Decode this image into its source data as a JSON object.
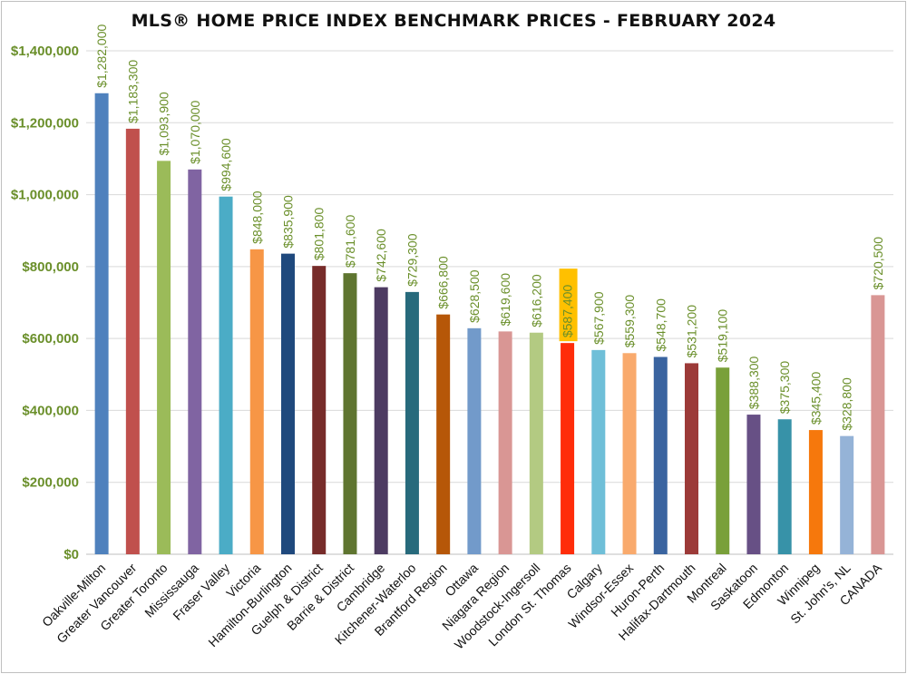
{
  "chart_data": {
    "type": "bar",
    "title": "MLS® HOME PRICE INDEX BENCHMARK PRICES - FEBRUARY 2024",
    "xlabel": "",
    "ylabel": "",
    "ylim": [
      0,
      1400000
    ],
    "yticks": [
      0,
      200000,
      400000,
      600000,
      800000,
      1000000,
      1200000,
      1400000
    ],
    "ytick_labels": [
      "$0",
      "$200,000",
      "$400,000",
      "$600,000",
      "$800,000",
      "$1,000,000",
      "$1,200,000",
      "$1,400,000"
    ],
    "grid": true,
    "legend": "none",
    "categories": [
      "Oakville-Milton",
      "Greater Vancouver",
      "Greater Toronto",
      "Mississauga",
      "Fraser Valley",
      "Victoria",
      "Hamilton-Burlington",
      "Guelph & District",
      "Barrie & District",
      "Cambridge",
      "Kitchener-Waterloo",
      "Brantford Region",
      "Ottawa",
      "Niagara Region",
      "Woodstock-Ingersoll",
      "London St. Thomas",
      "Calgary",
      "Windsor-Essex",
      "Huron-Perth",
      "Halifax-Dartmouth",
      "Montreal",
      "Saskatoon",
      "Edmonton",
      "Winnipeg",
      "St. John's, NL",
      "CANADA"
    ],
    "values": [
      1282000,
      1183300,
      1093900,
      1070000,
      994600,
      848000,
      835900,
      801800,
      781600,
      742600,
      729300,
      666800,
      628500,
      619600,
      616200,
      587400,
      567900,
      559300,
      548700,
      531200,
      519100,
      388300,
      375300,
      345400,
      328800,
      720500
    ],
    "data_labels": [
      "$1,282,000",
      "$1,183,300",
      "$1,093,900",
      "$1,070,000",
      "$994,600",
      "$848,000",
      "$835,900",
      "$801,800",
      "$781,600",
      "$742,600",
      "$729,300",
      "$666,800",
      "$628,500",
      "$619,600",
      "$616,200",
      "$587,400",
      "$567,900",
      "$559,300",
      "$548,700",
      "$531,200",
      "$519,100",
      "$388,300",
      "$375,300",
      "$345,400",
      "$328,800",
      "$720,500"
    ],
    "bar_colors": [
      "#4f81bd",
      "#c0504d",
      "#9bbb59",
      "#8064a2",
      "#4bacc6",
      "#f79646",
      "#1f497d",
      "#772c2a",
      "#5f7530",
      "#4d3b62",
      "#276a7c",
      "#b65708",
      "#729aca",
      "#d99694",
      "#b3ca82",
      "#ff2d0a",
      "#6fbfd8",
      "#f9aa6d",
      "#3a64a0",
      "#9c3a38",
      "#79a03a",
      "#675085",
      "#3792a8",
      "#f6780c",
      "#95b3d7",
      "#d99694"
    ],
    "highlighted_index": 15,
    "highlight_color": "#ffc000",
    "label_color": "#6a8f2a"
  }
}
